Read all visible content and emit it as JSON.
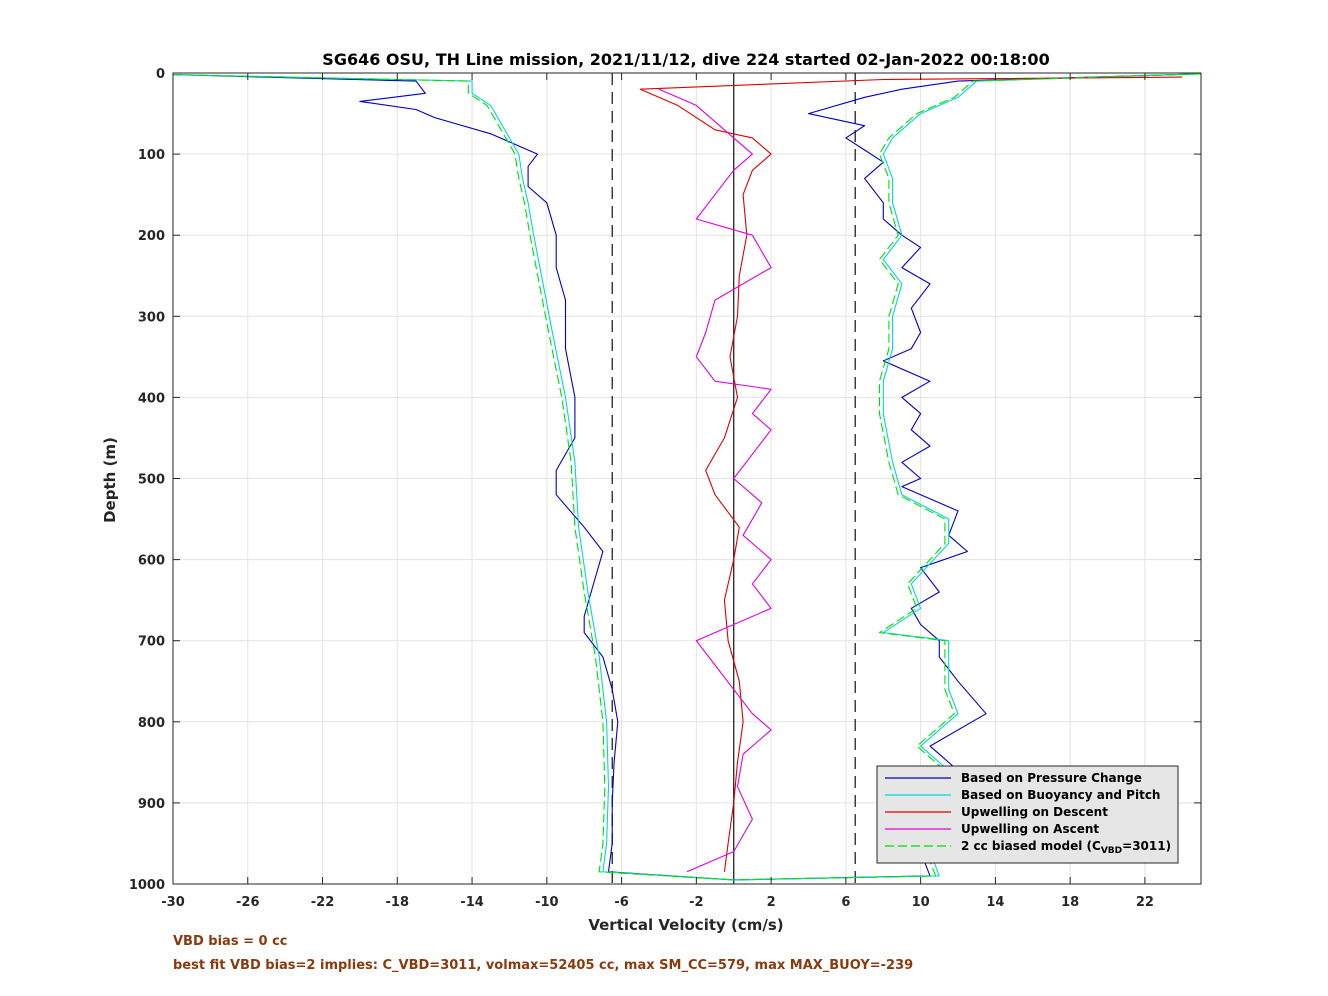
{
  "chart_data": {
    "type": "line",
    "title": "SG646 OSU, TH Line mission, 2021/11/12, dive 224 started 02-Jan-2022 00:18:00",
    "xlabel": "Vertical Velocity (cm/s)",
    "ylabel": "Depth (m)",
    "xlim": [
      -30,
      25
    ],
    "ylim": [
      0,
      1000
    ],
    "y_reversed": true,
    "x_ticks": [
      -30,
      -26,
      -22,
      -18,
      -14,
      -10,
      -6,
      -2,
      2,
      6,
      10,
      14,
      18,
      22
    ],
    "y_ticks": [
      0,
      100,
      200,
      300,
      400,
      500,
      600,
      700,
      800,
      900,
      1000
    ],
    "grid": true,
    "legend_position": "bottom-right",
    "reference_lines": [
      {
        "x": -6.5,
        "style": "dashed"
      },
      {
        "x": 6.5,
        "style": "dashed"
      },
      {
        "x": 0,
        "style": "solid"
      }
    ],
    "series": [
      {
        "name": "Based on Pressure Change",
        "color": "#0000c8",
        "style": "solid",
        "descent": [
          [
            -30,
            2
          ],
          [
            -17,
            10
          ],
          [
            -16.5,
            25
          ],
          [
            -20,
            35
          ],
          [
            -17,
            45
          ],
          [
            -16,
            55
          ],
          [
            -13,
            75
          ],
          [
            -12,
            85
          ],
          [
            -10.5,
            100
          ],
          [
            -11,
            115
          ],
          [
            -11,
            140
          ],
          [
            -10,
            160
          ],
          [
            -9.5,
            200
          ],
          [
            -9.5,
            240
          ],
          [
            -9,
            280
          ],
          [
            -9,
            340
          ],
          [
            -8.5,
            400
          ],
          [
            -8.5,
            450
          ],
          [
            -9.5,
            490
          ],
          [
            -9.5,
            520
          ],
          [
            -8,
            560
          ],
          [
            -7,
            590
          ],
          [
            -7.5,
            630
          ],
          [
            -8,
            670
          ],
          [
            -8,
            690
          ],
          [
            -7,
            720
          ],
          [
            -6.5,
            760
          ],
          [
            -6.2,
            800
          ],
          [
            -6.4,
            850
          ],
          [
            -6.5,
            900
          ],
          [
            -6.5,
            950
          ],
          [
            -6.7,
            985
          ],
          [
            0,
            995
          ]
        ],
        "ascent": [
          [
            25,
            1
          ],
          [
            12,
            10
          ],
          [
            9,
            20
          ],
          [
            7,
            30
          ],
          [
            4,
            50
          ],
          [
            7,
            65
          ],
          [
            6,
            80
          ],
          [
            7,
            95
          ],
          [
            8,
            110
          ],
          [
            7,
            130
          ],
          [
            8,
            160
          ],
          [
            8,
            180
          ],
          [
            9,
            200
          ],
          [
            10,
            215
          ],
          [
            9,
            240
          ],
          [
            10.5,
            260
          ],
          [
            9.5,
            290
          ],
          [
            10,
            320
          ],
          [
            9.5,
            340
          ],
          [
            8,
            355
          ],
          [
            10.5,
            380
          ],
          [
            9,
            400
          ],
          [
            10,
            420
          ],
          [
            9.5,
            440
          ],
          [
            10.5,
            460
          ],
          [
            9,
            480
          ],
          [
            10,
            500
          ],
          [
            9,
            510
          ],
          [
            12,
            540
          ],
          [
            11.5,
            570
          ],
          [
            12.5,
            590
          ],
          [
            10,
            610
          ],
          [
            11,
            640
          ],
          [
            9.5,
            660
          ],
          [
            10,
            680
          ],
          [
            11,
            700
          ],
          [
            11,
            720
          ],
          [
            12,
            750
          ],
          [
            13.5,
            790
          ],
          [
            10.5,
            830
          ],
          [
            12,
            860
          ],
          [
            11.5,
            900
          ],
          [
            12,
            920
          ],
          [
            10,
            960
          ],
          [
            10.5,
            990
          ],
          [
            0,
            995
          ]
        ]
      },
      {
        "name": "Based on Buoyancy and Pitch",
        "color": "#00d8d8",
        "style": "solid",
        "descent": [
          [
            -30,
            2
          ],
          [
            -14,
            10
          ],
          [
            -14,
            25
          ],
          [
            -13,
            40
          ],
          [
            -12.5,
            60
          ],
          [
            -12,
            80
          ],
          [
            -11.5,
            100
          ],
          [
            -11.3,
            130
          ],
          [
            -11,
            160
          ],
          [
            -10.7,
            200
          ],
          [
            -10.2,
            260
          ],
          [
            -9.7,
            320
          ],
          [
            -9,
            400
          ],
          [
            -8.5,
            480
          ],
          [
            -8.3,
            560
          ],
          [
            -7.8,
            640
          ],
          [
            -7.2,
            720
          ],
          [
            -6.8,
            800
          ],
          [
            -6.7,
            880
          ],
          [
            -6.8,
            950
          ],
          [
            -7,
            985
          ],
          [
            0,
            995
          ]
        ],
        "ascent": [
          [
            25,
            1
          ],
          [
            13,
            10
          ],
          [
            12,
            30
          ],
          [
            10,
            50
          ],
          [
            8.5,
            80
          ],
          [
            8,
            100
          ],
          [
            8.5,
            130
          ],
          [
            8.5,
            160
          ],
          [
            9,
            200
          ],
          [
            8,
            230
          ],
          [
            9,
            260
          ],
          [
            8.5,
            300
          ],
          [
            8.5,
            340
          ],
          [
            8,
            380
          ],
          [
            8,
            420
          ],
          [
            8.5,
            480
          ],
          [
            9,
            520
          ],
          [
            11.5,
            550
          ],
          [
            11.5,
            580
          ],
          [
            9.5,
            630
          ],
          [
            10,
            660
          ],
          [
            8,
            690
          ],
          [
            11.5,
            700
          ],
          [
            11.5,
            760
          ],
          [
            12,
            790
          ],
          [
            10,
            830
          ],
          [
            12,
            870
          ],
          [
            11.5,
            910
          ],
          [
            12.5,
            930
          ],
          [
            10.5,
            960
          ],
          [
            11,
            990
          ],
          [
            0,
            995
          ]
        ]
      },
      {
        "name": "Upwelling on Descent",
        "color": "#e00000",
        "style": "solid",
        "points": [
          [
            24,
            5
          ],
          [
            8,
            8
          ],
          [
            -5,
            20
          ],
          [
            -3,
            40
          ],
          [
            -1,
            70
          ],
          [
            1,
            80
          ],
          [
            2,
            100
          ],
          [
            1,
            120
          ],
          [
            0.5,
            150
          ],
          [
            0.7,
            200
          ],
          [
            0.3,
            250
          ],
          [
            0.2,
            300
          ],
          [
            -0.2,
            350
          ],
          [
            0.2,
            400
          ],
          [
            -0.5,
            450
          ],
          [
            -1.5,
            490
          ],
          [
            -1,
            520
          ],
          [
            0.3,
            560
          ],
          [
            0,
            600
          ],
          [
            -0.5,
            650
          ],
          [
            -0.3,
            700
          ],
          [
            0.3,
            750
          ],
          [
            0.5,
            800
          ],
          [
            0.2,
            850
          ],
          [
            0,
            900
          ],
          [
            -0.3,
            950
          ],
          [
            -0.5,
            985
          ]
        ]
      },
      {
        "name": "Upwelling on Ascent",
        "color": "#e000e0",
        "style": "solid",
        "points": [
          [
            -4,
            20
          ],
          [
            -2,
            40
          ],
          [
            -1,
            60
          ],
          [
            0,
            80
          ],
          [
            1,
            100
          ],
          [
            0,
            120
          ],
          [
            -1,
            150
          ],
          [
            -2,
            180
          ],
          [
            1,
            200
          ],
          [
            2,
            240
          ],
          [
            -1,
            280
          ],
          [
            -1.5,
            320
          ],
          [
            -2,
            350
          ],
          [
            -1,
            380
          ],
          [
            2,
            390
          ],
          [
            1,
            420
          ],
          [
            2,
            440
          ],
          [
            1,
            470
          ],
          [
            0,
            500
          ],
          [
            1.5,
            530
          ],
          [
            0.5,
            570
          ],
          [
            2,
            600
          ],
          [
            1,
            630
          ],
          [
            2,
            660
          ],
          [
            -2,
            700
          ],
          [
            -1,
            730
          ],
          [
            0,
            760
          ],
          [
            1,
            790
          ],
          [
            2,
            810
          ],
          [
            0.5,
            840
          ],
          [
            0.2,
            880
          ],
          [
            1,
            920
          ],
          [
            0,
            960
          ],
          [
            -2.5,
            985
          ]
        ]
      },
      {
        "name": "2 cc biased model (C_VBD=3011)",
        "color": "#00e000",
        "style": "dashed",
        "descent": [
          [
            -30,
            2
          ],
          [
            -14.2,
            10
          ],
          [
            -14.2,
            25
          ],
          [
            -13.2,
            40
          ],
          [
            -12.7,
            60
          ],
          [
            -12.2,
            80
          ],
          [
            -11.7,
            100
          ],
          [
            -11.5,
            130
          ],
          [
            -11.2,
            160
          ],
          [
            -10.9,
            200
          ],
          [
            -10.4,
            260
          ],
          [
            -9.9,
            320
          ],
          [
            -9.2,
            400
          ],
          [
            -8.7,
            480
          ],
          [
            -8.5,
            560
          ],
          [
            -8,
            640
          ],
          [
            -7.4,
            720
          ],
          [
            -7,
            800
          ],
          [
            -6.9,
            880
          ],
          [
            -7,
            950
          ],
          [
            -7.2,
            985
          ],
          [
            0,
            995
          ]
        ],
        "ascent": [
          [
            25,
            1
          ],
          [
            12.8,
            10
          ],
          [
            11.8,
            30
          ],
          [
            9.8,
            50
          ],
          [
            8.3,
            80
          ],
          [
            7.8,
            100
          ],
          [
            8.3,
            130
          ],
          [
            8.3,
            160
          ],
          [
            8.8,
            200
          ],
          [
            7.8,
            230
          ],
          [
            8.8,
            260
          ],
          [
            8.3,
            300
          ],
          [
            8.3,
            340
          ],
          [
            7.8,
            380
          ],
          [
            7.8,
            420
          ],
          [
            8.3,
            480
          ],
          [
            8.8,
            520
          ],
          [
            11.3,
            550
          ],
          [
            11.3,
            580
          ],
          [
            9.3,
            630
          ],
          [
            9.8,
            660
          ],
          [
            7.8,
            690
          ],
          [
            11.3,
            700
          ],
          [
            11.3,
            760
          ],
          [
            11.8,
            790
          ],
          [
            9.8,
            830
          ],
          [
            11.8,
            870
          ],
          [
            11.3,
            910
          ],
          [
            12.3,
            930
          ],
          [
            10.3,
            960
          ],
          [
            10.8,
            990
          ],
          [
            0,
            995
          ]
        ]
      }
    ],
    "legend": [
      {
        "label": "Based on Pressure Change",
        "color": "#0000c8",
        "style": "solid"
      },
      {
        "label": "Based on Buoyancy and Pitch",
        "color": "#00d8d8",
        "style": "solid"
      },
      {
        "label": "Upwelling on Descent",
        "color": "#e00000",
        "style": "solid"
      },
      {
        "label": "Upwelling on Ascent",
        "color": "#e000e0",
        "style": "solid"
      },
      {
        "label_prefix": "2 cc biased model (C",
        "label_sub": "VBD",
        "label_suffix": "=3011)",
        "color": "#00e000",
        "style": "dashed"
      }
    ]
  },
  "notes": {
    "vbd_bias": "VBD bias = 0 cc",
    "best_fit": "best fit VBD bias=2 implies: C_VBD=3011, volmax=52405 cc, max SM_CC=579, max MAX_BUOY=-239"
  }
}
